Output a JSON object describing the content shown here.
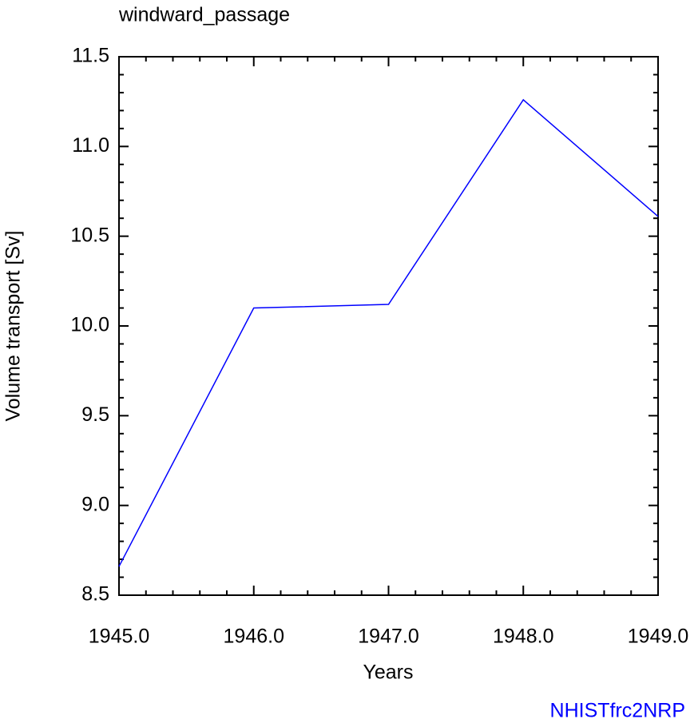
{
  "chart_data": {
    "type": "line",
    "title": "windward_passage",
    "x_label": "Years",
    "y_label": "Volume transport [Sv]",
    "annotation": "NHISTfrc2NRP",
    "x": [
      1945,
      1946,
      1947,
      1948,
      1949
    ],
    "series": [
      {
        "name": "windward_passage",
        "color": "#0000ff",
        "values": [
          8.66,
          10.1,
          10.12,
          11.26,
          10.61
        ]
      }
    ],
    "xlim": [
      1945,
      1949
    ],
    "xticks": [
      {
        "value": 1945,
        "label": "1945.0"
      },
      {
        "value": 1946,
        "label": "1946.0"
      },
      {
        "value": 1947,
        "label": "1947.0"
      },
      {
        "value": 1948,
        "label": "1948.0"
      },
      {
        "value": 1949,
        "label": "1949.0"
      }
    ],
    "ylim": [
      8.5,
      11.5
    ],
    "yticks": [
      8.5,
      {
        "value": 9,
        "label": "9.0"
      },
      9.5,
      {
        "value": 10,
        "label": "10.0"
      },
      10.5,
      {
        "value": 11,
        "label": "11.0"
      },
      11.5
    ],
    "annotation_color": "#0000ff"
  }
}
